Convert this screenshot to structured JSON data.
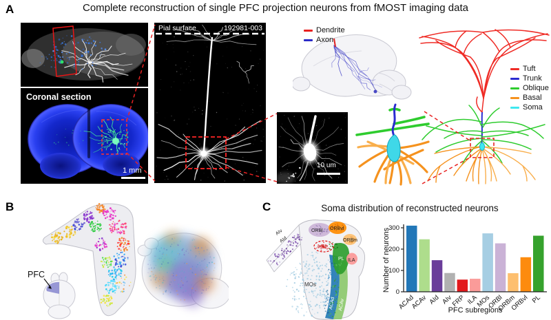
{
  "figure": {
    "title": "Complete reconstruction of single PFC projection neurons from fMOST imaging data",
    "panel_a_label": "A",
    "panel_b_label": "B",
    "panel_c_label": "C"
  },
  "panel_a": {
    "coronal_label": "Coronal section",
    "coronal_scalebar": "1 mm",
    "pial_surface_label": "Pial surface",
    "neuron_id": "192981-003",
    "inset_scalebar": "10 um",
    "brain_legend": [
      {
        "label": "Dendrite",
        "color": "#e8201f"
      },
      {
        "label": "Axon",
        "color": "#2b2bc8"
      }
    ],
    "dendrite_legend": [
      {
        "label": "Tuft",
        "color": "#ef2b25"
      },
      {
        "label": "Trunk",
        "color": "#2b2bd0"
      },
      {
        "label": "Oblique",
        "color": "#2ecc2e"
      },
      {
        "label": "Basal",
        "color": "#f5921e"
      },
      {
        "label": "Soma",
        "color": "#3fe8ef"
      }
    ]
  },
  "panel_b": {
    "pfc_label": "PFC",
    "projection_palette": [
      "#e8b020",
      "#f5d327",
      "#3f51d8",
      "#8833cc",
      "#f58220",
      "#33cc44",
      "#e833c8",
      "#ff4070",
      "#2fa8f5",
      "#ff3030",
      "#22ccee",
      "#f5e030",
      "#44dd44",
      "#55ddff",
      "#c8e830",
      "#6a5acd"
    ]
  },
  "panel_c": {
    "title": "Soma distribution of reconstructed neurons",
    "map_labels": {
      "aiv": "AIv",
      "aid": "AId",
      "orbl": "ORBl",
      "orbvl": "ORBvl",
      "orbm": "ORBm",
      "frp": "FRP",
      "pl": "PL",
      "ila": "ILA",
      "mos": "MOs",
      "acad": "ACAd",
      "acav": "ACAv"
    }
  },
  "chart_data": {
    "type": "bar",
    "title": "Soma distribution of reconstructed neurons",
    "categories": [
      "ACAd",
      "ACAv",
      "AId",
      "AIv",
      "FRP",
      "ILA",
      "MOs",
      "ORBl",
      "ORBm",
      "ORBvl",
      "PL"
    ],
    "values": [
      310,
      246,
      148,
      88,
      57,
      61,
      274,
      227,
      87,
      162,
      263
    ],
    "colors": [
      "#2277b8",
      "#aedd8c",
      "#6a3d9a",
      "#b1b1b1",
      "#e2191c",
      "#fa9b99",
      "#a6cee3",
      "#cab2d6",
      "#fdbf6f",
      "#fd8b0e",
      "#36a22d"
    ],
    "xlabel": "PFC subregions",
    "ylabel": "Number of neurons",
    "ylim": [
      0,
      320
    ],
    "yticks": [
      0,
      100,
      200,
      300
    ],
    "grid": false,
    "legend_position": "none"
  }
}
